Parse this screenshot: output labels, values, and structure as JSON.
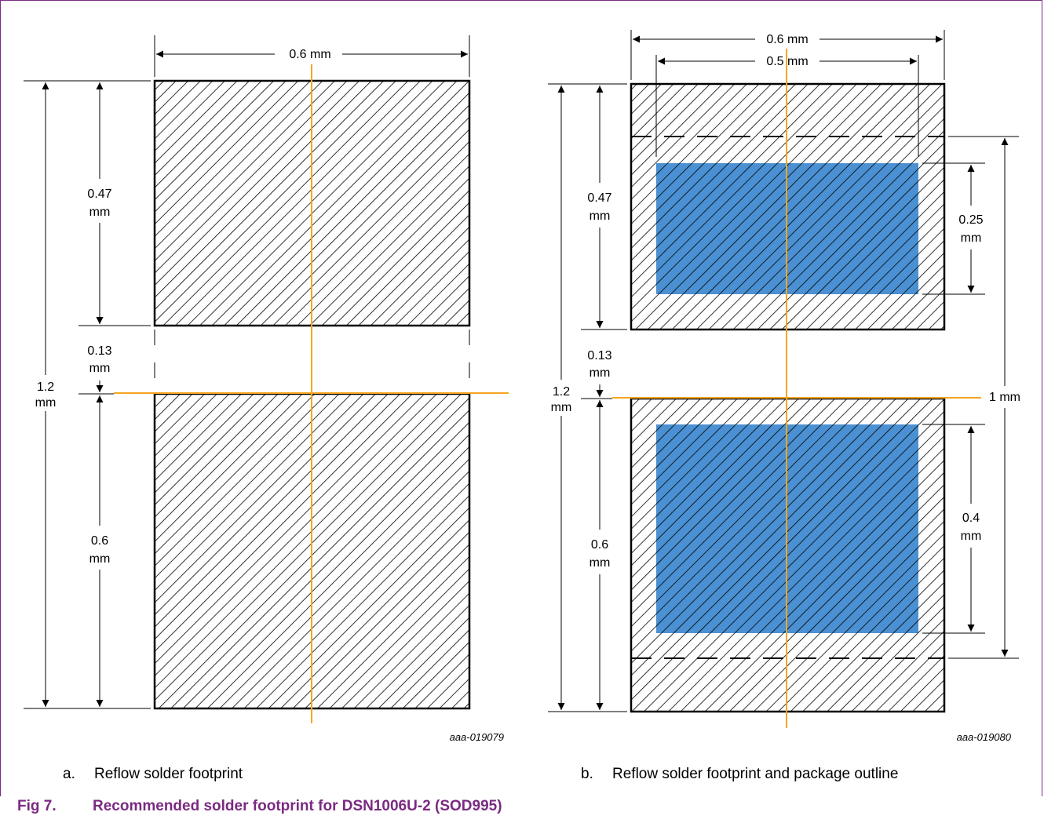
{
  "colors": {
    "outline": "#000000",
    "centerline": "#f5a623",
    "solder_paste": "#4a90d2",
    "caption": "#7a2a82"
  },
  "figure": {
    "number": "Fig 7.",
    "title": "Recommended solder footprint for DSN1006U-2 (SOD995)"
  },
  "panel_a": {
    "letter": "a.",
    "caption": "Reflow solder footprint",
    "code": "aaa-019079",
    "dims": {
      "width": "0.6 mm",
      "pad_top_v": "0.47",
      "pad_top_u": "mm",
      "gap_v": "0.13",
      "gap_u": "mm",
      "total_v": "1.2",
      "total_u": "mm",
      "pad_bottom_v": "0.6",
      "pad_bottom_u": "mm"
    }
  },
  "panel_b": {
    "letter": "b.",
    "caption": "Reflow solder footprint and package outline",
    "code": "aaa-019080",
    "dims": {
      "width_outer": "0.6 mm",
      "width_inner": "0.5 mm",
      "pad_top_v": "0.47",
      "pad_top_u": "mm",
      "gap_v": "0.13",
      "gap_u": "mm",
      "total_v": "1.2",
      "total_u": "mm",
      "pad_bottom_v": "0.6",
      "pad_bottom_u": "mm",
      "paste_top_v": "0.25",
      "paste_top_u": "mm",
      "paste_bottom_v": "0.4",
      "paste_bottom_u": "mm",
      "package": "1 mm"
    }
  }
}
